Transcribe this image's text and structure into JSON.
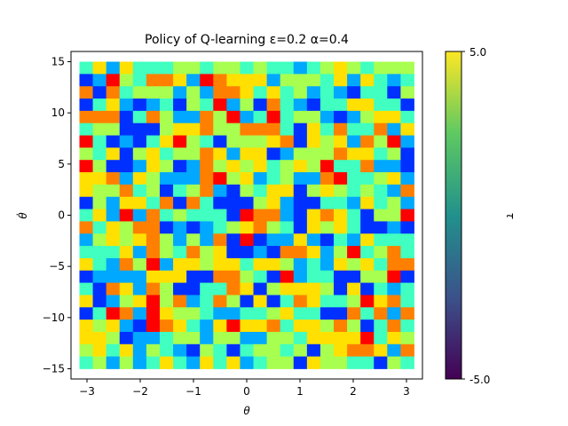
{
  "chart_data": {
    "type": "heatmap",
    "title": "Policy of Q-learning ε=0.2 α=0.4",
    "xlabel": "θ",
    "ylabel": "θ̇",
    "colorbar_label": "τ",
    "xlim": [
      -3.3,
      3.3
    ],
    "ylim": [
      -16,
      16
    ],
    "x_range": [
      -3.14159,
      3.14159
    ],
    "y_range": [
      -15,
      15
    ],
    "grid": false,
    "x_ticks": [
      -3,
      -2,
      -1,
      0,
      1,
      2,
      3
    ],
    "x_tick_labels": [
      "−3",
      "−2",
      "−1",
      "0",
      "1",
      "2",
      "3"
    ],
    "y_ticks": [
      15,
      10,
      5,
      0,
      -5,
      -10,
      -15
    ],
    "y_tick_labels": [
      "15",
      "10",
      "5",
      "0",
      "−5",
      "−10",
      "−15"
    ],
    "colorbar_ticks": [
      "5.0",
      "-5.0"
    ],
    "colorbar_range": [
      -5.0,
      5.0
    ],
    "n_cols": 25,
    "n_rows": 25,
    "value_levels": [
      -5,
      -3.75,
      -2.5,
      -1.25,
      0,
      1.25,
      2.5,
      3.75,
      5
    ],
    "level_colors": [
      "#800000",
      "#ff0000",
      "#ff8000",
      "#ffe000",
      "#a8ff50",
      "#40ffc0",
      "#00a8ff",
      "#0030ff",
      "#000090"
    ],
    "colorbar_colors": [
      "#440154",
      "#3b528b",
      "#21918c",
      "#5ec962",
      "#fde725"
    ],
    "grid_values_by_row_top_to_bottom": [
      "5363555445445455654345444",
      "7614522361233364445363565",
      "2725444646223535465675574",
      "7536765745164725675533557",
      "2227524662416515446764335",
      "5447774332442225735255263",
      "1576753145744432734362416",
      "4537435442363376444233547",
      "1477634762434354341552667",
      "3326346662143654662155436",
      "3442547542674533743454562",
      "7463352725777436775563546",
      "5361625455571226732357441",
      "2534227676543245734357767",
      "6434324646271766367563555",
      "5553624524377672236415425",
      "3562416334335334656343522",
      "7666633377224571655774417",
      "5723624775523743334737565",
      "3764314265247375235541325",
      "7512613445665543557725262",
      "3436712356313325334247525",
      "3347665446446644533331534",
      "4353645674575445474322362",
      "5464653563536544734455745"
    ]
  }
}
